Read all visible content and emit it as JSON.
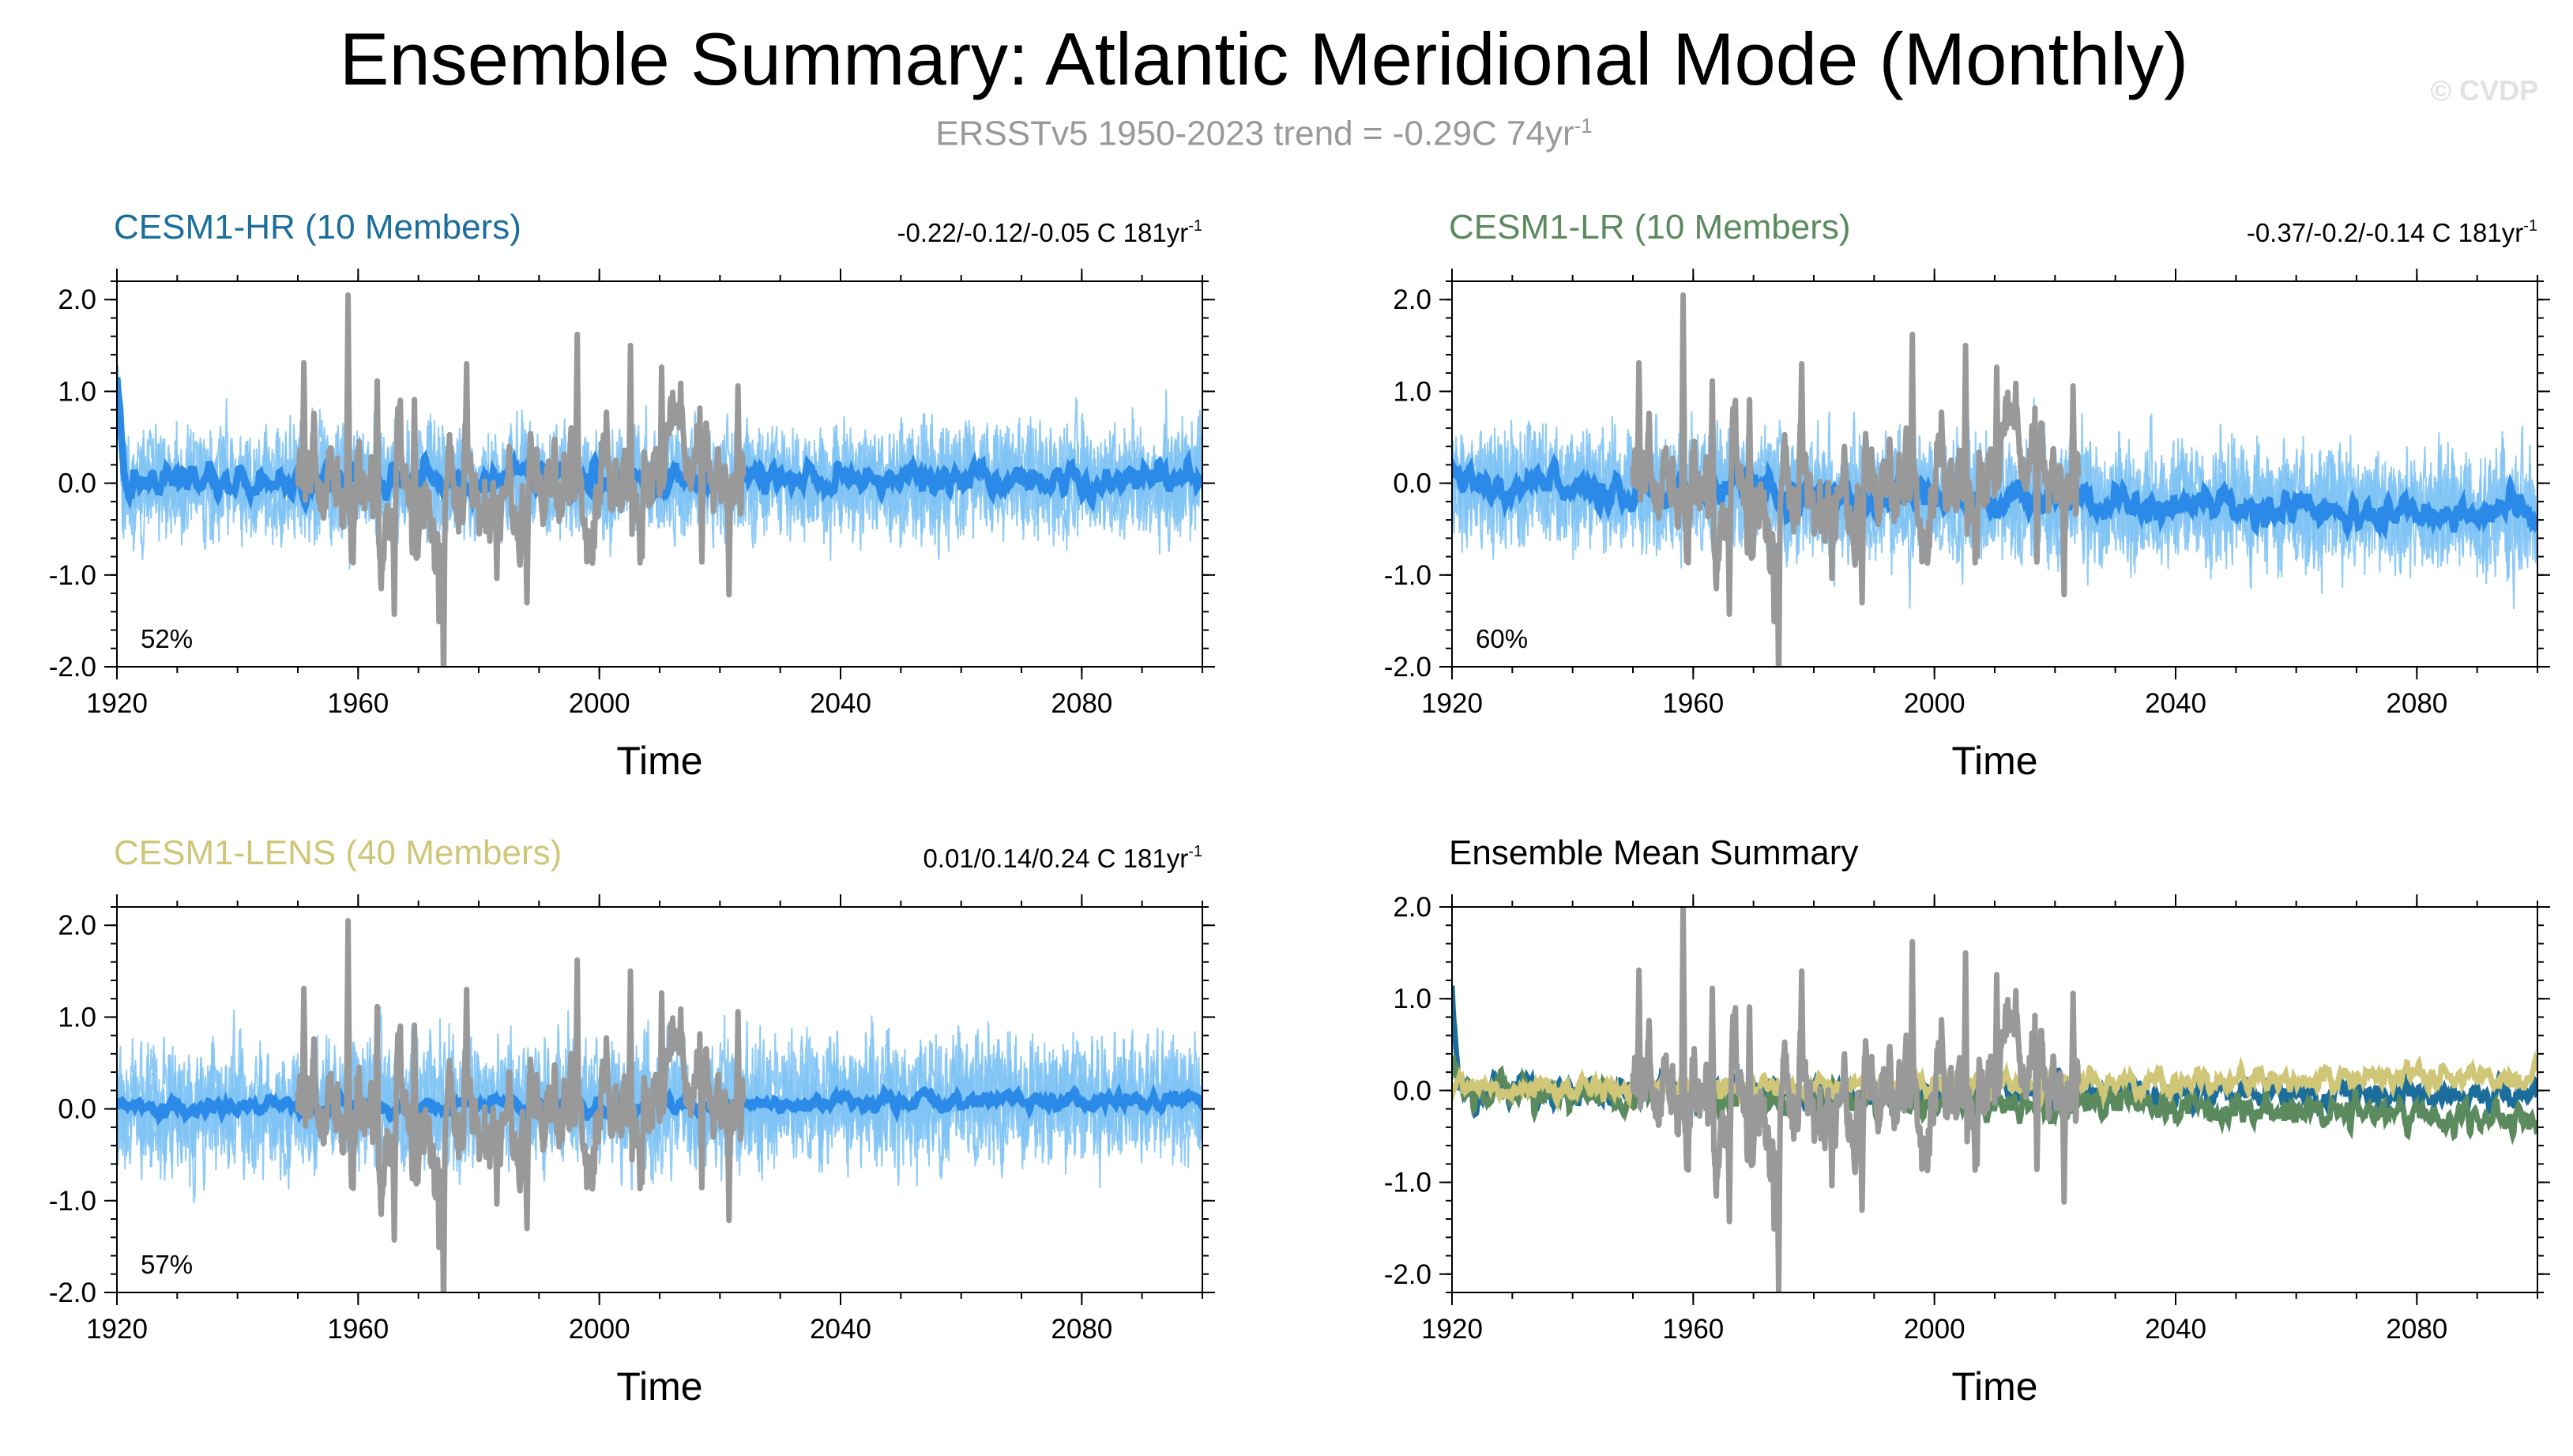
{
  "figure": {
    "title": "Ensemble Summary: Atlantic Meridional Mode (Monthly)",
    "subtitle_main": "ERSSTv5 1950-2023 trend = -0.29C 74yr",
    "subtitle_exp": "-1",
    "copyright": "© CVDP"
  },
  "colors": {
    "obs": "#999999",
    "spread_light": "#7fc3f5",
    "ens_mean_blue": "#2b8ae8",
    "hr": "#1b6e9c",
    "lr": "#5b8a5e",
    "lens": "#cfc678",
    "axis": "#000000"
  },
  "chart_data": [
    {
      "type": "line",
      "panel": "hr",
      "title": "CESM1-HR (10 Members)",
      "title_color": "#1b6e9c",
      "trend_text": "-0.22/-0.12/-0.05 C 181yr",
      "trend_exp": "-1",
      "percent_label": "52%",
      "xlabel": "Time",
      "xlim": [
        1920,
        2100
      ],
      "ylim": [
        -2.0,
        2.2
      ],
      "xticks": [
        1920,
        1960,
        2000,
        2040,
        2080
      ],
      "yticks": [
        -2.0,
        -1.0,
        0.0,
        1.0,
        2.0
      ],
      "ytick_labels": [
        "-2.0",
        "-1.0",
        "0.0",
        "1.0",
        "2.0"
      ],
      "obs_range": [
        1950,
        2023
      ],
      "ens_range": [
        1920,
        2100
      ],
      "ens_start_value": 1.15,
      "ens_end_trend": 0.05,
      "spread_amp": 0.55,
      "mean_amp": 0.18,
      "series": [
        {
          "name": "ensemble spread",
          "color": "#7fc3f5"
        },
        {
          "name": "ensemble mean",
          "color": "#2b8ae8"
        },
        {
          "name": "ERSSTv5",
          "color": "#999999"
        }
      ]
    },
    {
      "type": "line",
      "panel": "lr",
      "title": "CESM1-LR (10 Members)",
      "title_color": "#5b8a5e",
      "trend_text": "-0.37/-0.2/-0.14 C 181yr",
      "trend_exp": "-1",
      "percent_label": "60%",
      "xlabel": "Time",
      "xlim": [
        1920,
        2100
      ],
      "ylim": [
        -2.0,
        2.2
      ],
      "xticks": [
        1920,
        1960,
        2000,
        2040,
        2080
      ],
      "yticks": [
        -2.0,
        -1.0,
        0.0,
        1.0,
        2.0
      ],
      "ytick_labels": [
        "-2.0",
        "-1.0",
        "0.0",
        "1.0",
        "2.0"
      ],
      "obs_range": [
        1950,
        2023
      ],
      "ens_range": [
        1920,
        2100
      ],
      "ens_start_value": 0.0,
      "ens_end_trend": -0.35,
      "spread_amp": 0.6,
      "mean_amp": 0.2,
      "series": [
        {
          "name": "ensemble spread",
          "color": "#7fc3f5"
        },
        {
          "name": "ensemble mean",
          "color": "#2b8ae8"
        },
        {
          "name": "ERSSTv5",
          "color": "#999999"
        }
      ]
    },
    {
      "type": "line",
      "panel": "lens",
      "title": "CESM1-LENS (40 Members)",
      "title_color": "#cfc678",
      "trend_text": "0.01/0.14/0.24 C 181yr",
      "trend_exp": "-1",
      "percent_label": "57%",
      "xlabel": "Time",
      "xlim": [
        1920,
        2100
      ],
      "ylim": [
        -2.0,
        2.2
      ],
      "xticks": [
        1920,
        1960,
        2000,
        2040,
        2080
      ],
      "yticks": [
        -2.0,
        -1.0,
        0.0,
        1.0,
        2.0
      ],
      "ytick_labels": [
        "-2.0",
        "-1.0",
        "0.0",
        "1.0",
        "2.0"
      ],
      "obs_range": [
        1950,
        2023
      ],
      "ens_range": [
        1920,
        2100
      ],
      "ens_start_value": 0.0,
      "ens_end_trend": 0.1,
      "spread_amp": 0.6,
      "mean_amp": 0.1,
      "series": [
        {
          "name": "ensemble spread",
          "color": "#7fc3f5"
        },
        {
          "name": "ensemble mean",
          "color": "#2b8ae8"
        },
        {
          "name": "ERSSTv5",
          "color": "#999999"
        }
      ]
    },
    {
      "type": "line",
      "panel": "summary",
      "title": "Ensemble Mean Summary",
      "title_color": "#000000",
      "xlabel": "Time",
      "xlim": [
        1920,
        2100
      ],
      "ylim": [
        -2.2,
        2.0
      ],
      "xticks": [
        1920,
        1960,
        2000,
        2040,
        2080
      ],
      "yticks": [
        -2.0,
        -1.0,
        0.0,
        1.0,
        2.0
      ],
      "ytick_labels": [
        "-2.0",
        "-1.0",
        "0.0",
        "1.0",
        "2.0"
      ],
      "obs_range": [
        1950,
        2023
      ],
      "series": [
        {
          "name": "ERSSTv5",
          "color": "#999999"
        },
        {
          "name": "CESM1-HR",
          "color": "#1b6e9c"
        },
        {
          "name": "CESM1-LR",
          "color": "#5b8a5e"
        },
        {
          "name": "CESM1-LENS",
          "color": "#cfc678"
        }
      ]
    }
  ]
}
